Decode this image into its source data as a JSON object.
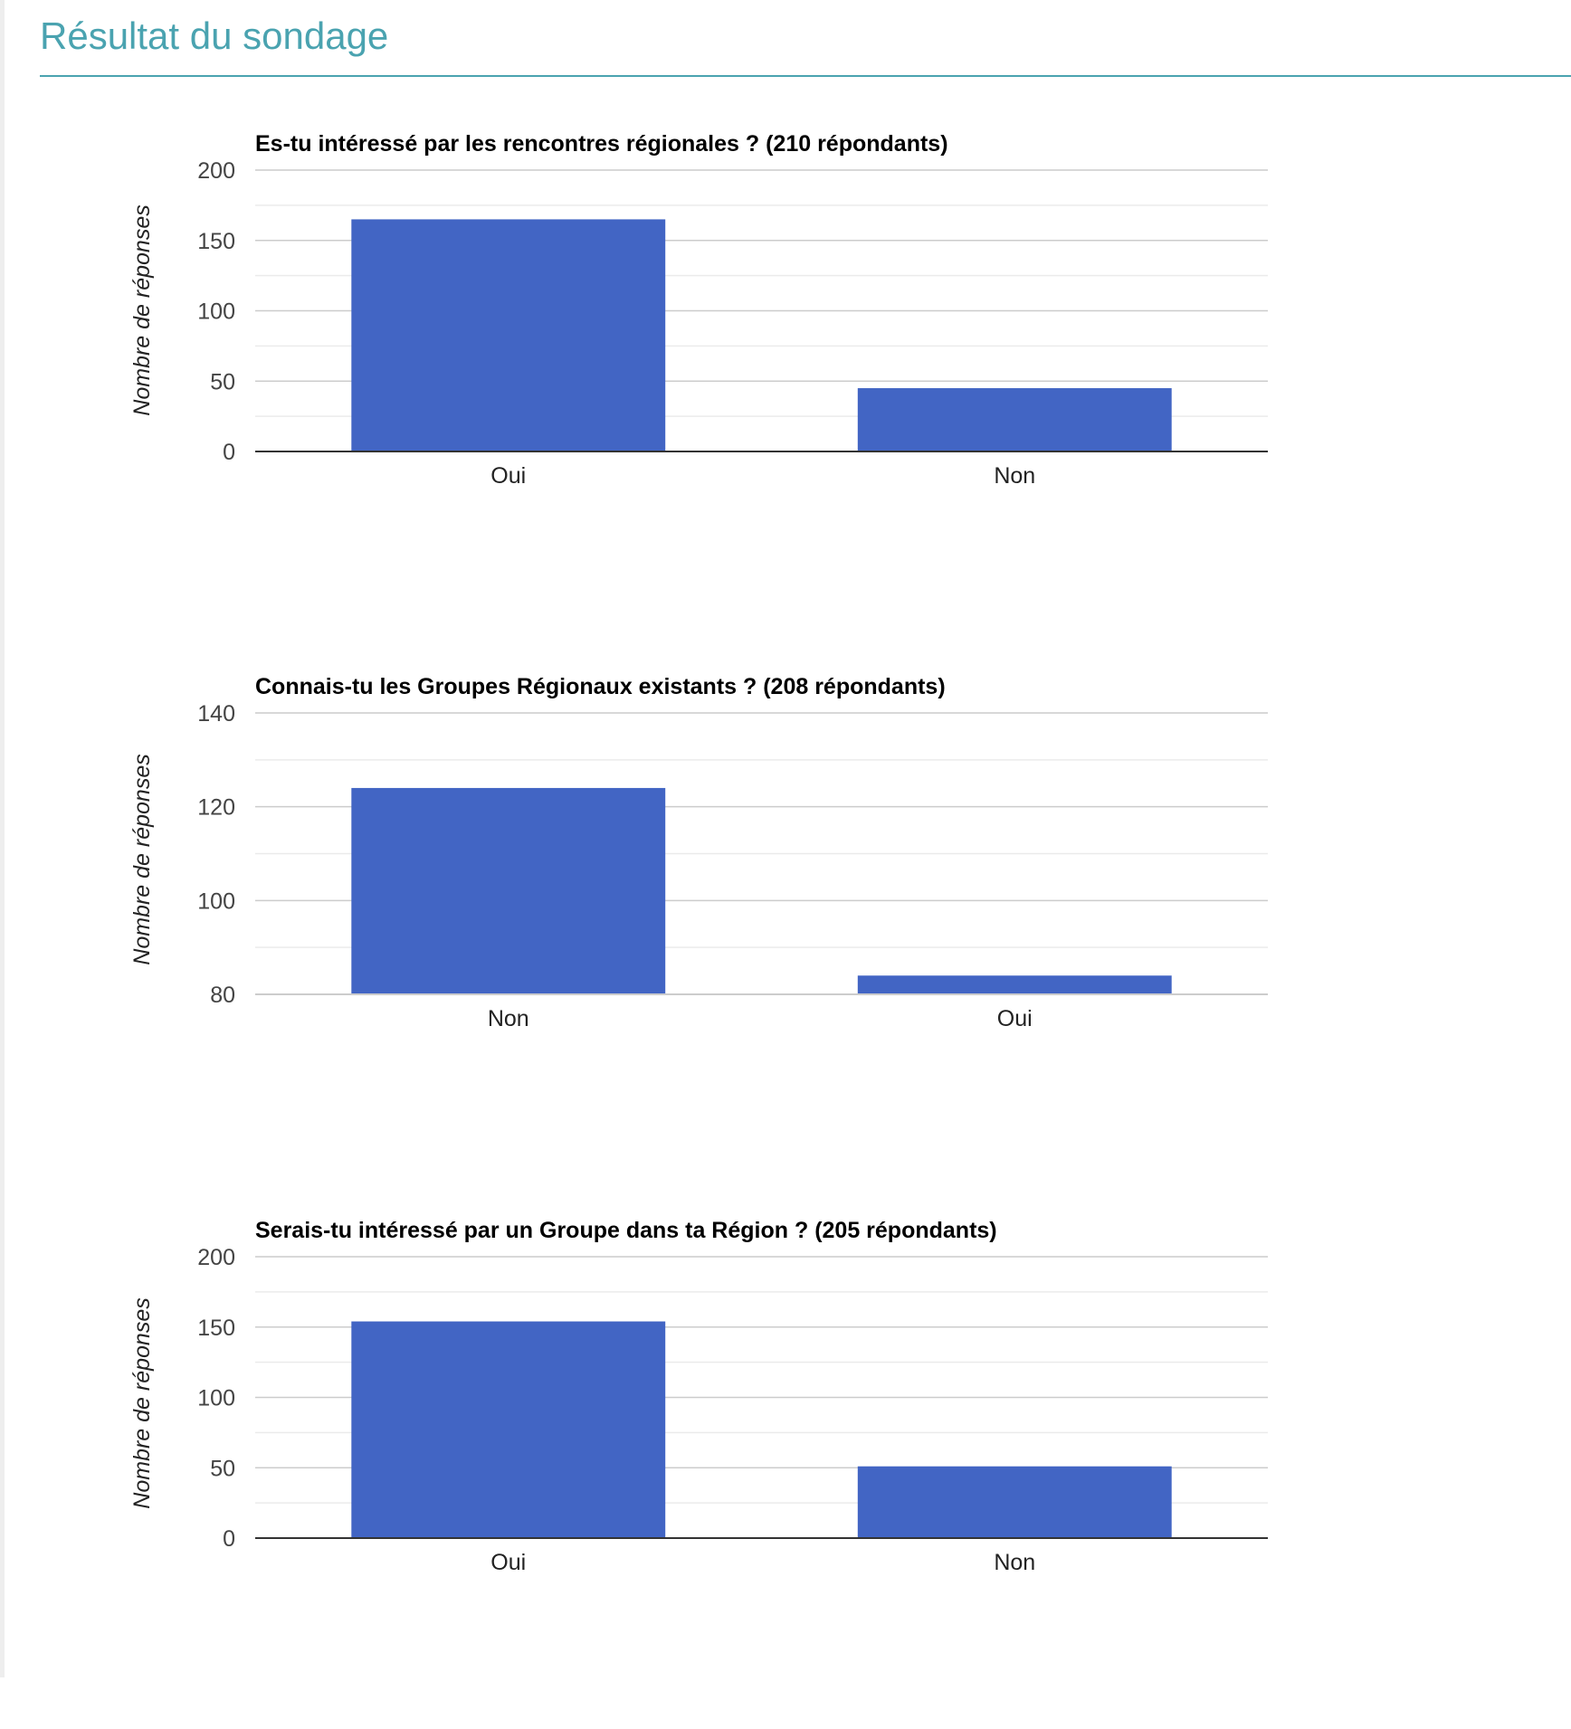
{
  "page": {
    "title": "Résultat du sondage",
    "accent_color": "#4aa3b0",
    "bar_color": "#4265c4"
  },
  "chart_data": [
    {
      "type": "bar",
      "title": "Es-tu intéressé par les rencontres régionales ? (210 répondants)",
      "ylabel": "Nombre de réponses",
      "xlabel": "",
      "categories": [
        "Oui",
        "Non"
      ],
      "values": [
        165,
        45
      ],
      "ylim": [
        0,
        200
      ],
      "yticks": [
        "0",
        "50",
        "100",
        "150",
        "200"
      ],
      "ytick_values": [
        0,
        50,
        100,
        150,
        200
      ],
      "minor_step": 25,
      "grid": true,
      "legend": "none"
    },
    {
      "type": "bar",
      "title": "Connais-tu les Groupes Régionaux existants ? (208 répondants)",
      "ylabel": "Nombre de réponses",
      "xlabel": "",
      "categories": [
        "Non",
        "Oui"
      ],
      "values": [
        124,
        84
      ],
      "ylim": [
        80,
        140
      ],
      "yticks": [
        "80",
        "100",
        "120",
        "140"
      ],
      "ytick_values": [
        80,
        100,
        120,
        140
      ],
      "minor_step": 10,
      "grid": true,
      "legend": "none"
    },
    {
      "type": "bar",
      "title": "Serais-tu intéressé par un Groupe dans ta Région ? (205 répondants)",
      "ylabel": "Nombre de réponses",
      "xlabel": "",
      "categories": [
        "Oui",
        "Non"
      ],
      "values": [
        154,
        51
      ],
      "ylim": [
        0,
        200
      ],
      "yticks": [
        "0",
        "50",
        "100",
        "150",
        "200"
      ],
      "ytick_values": [
        0,
        50,
        100,
        150,
        200
      ],
      "minor_step": 25,
      "grid": true,
      "legend": "none"
    }
  ]
}
